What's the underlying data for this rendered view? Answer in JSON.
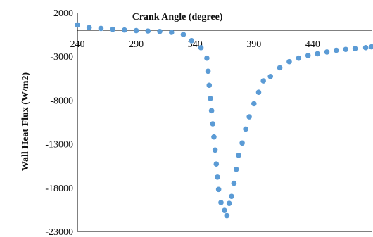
{
  "chart_data": {
    "type": "scatter",
    "title": "",
    "xlabel": "Crank Angle (degree)",
    "ylabel": "Wall Heat Flux (W/m2)",
    "xlim": [
      240,
      490
    ],
    "ylim": [
      -23000,
      2000
    ],
    "xticks": [
      240,
      290,
      340,
      390,
      440
    ],
    "yticks": [
      2000,
      -3000,
      -8000,
      -13000,
      -18000,
      -23000
    ],
    "x_axis_position": "y=0, labels above axis line",
    "grid": false,
    "legend": "none",
    "marker_color": "#5B9BD5",
    "series": [
      {
        "x": [
          240,
          250,
          260,
          270,
          280,
          290,
          300,
          310,
          320,
          330,
          337,
          345,
          350,
          351,
          352,
          353,
          354,
          355,
          356,
          357,
          358,
          359,
          360,
          362,
          365,
          367,
          369,
          371,
          373,
          375,
          377,
          380,
          383,
          386,
          390,
          394,
          398,
          404,
          412,
          420,
          428,
          436,
          444,
          452,
          460,
          468,
          476,
          485,
          490
        ],
        "y": [
          600,
          300,
          200,
          100,
          20,
          -50,
          -100,
          -150,
          -250,
          -500,
          -1200,
          -2000,
          -3200,
          -4700,
          -6300,
          -7800,
          -9200,
          -10700,
          -12200,
          -13700,
          -15300,
          -16800,
          -18200,
          -19700,
          -20600,
          -21200,
          -19800,
          -19000,
          -17500,
          -15900,
          -14300,
          -12900,
          -11300,
          -9900,
          -8400,
          -7100,
          -5800,
          -5300,
          -4300,
          -3600,
          -3200,
          -2900,
          -2700,
          -2500,
          -2300,
          -2200,
          -2100,
          -2000,
          -1900
        ]
      }
    ]
  }
}
